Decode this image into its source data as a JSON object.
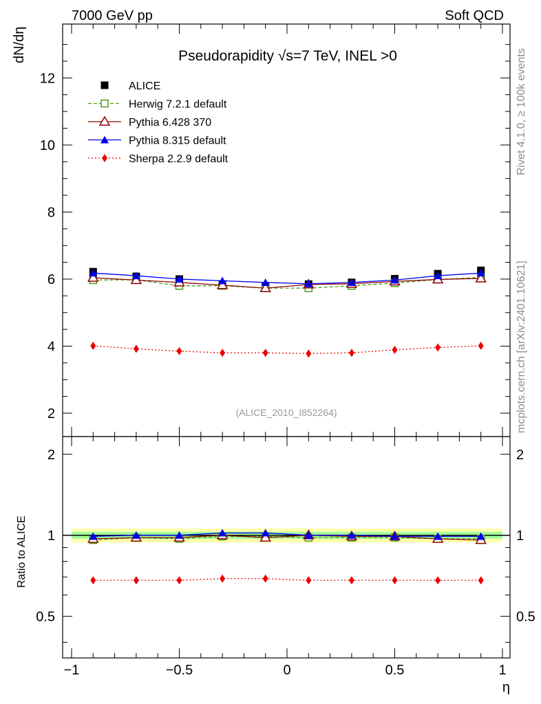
{
  "header": {
    "left": "7000 GeV pp",
    "right": "Soft QCD"
  },
  "side_text": {
    "rivet": "Rivet 4.1.0, ≥ 100k events",
    "mcplots": "mcplots.cern.ch [arXiv:2401.10621]"
  },
  "chart_data": {
    "type": "scatter",
    "title": "Pseudorapidity √s=7 TeV, INEL >0",
    "watermark": "(ALICE_2010_I852264)",
    "xlabel": "η",
    "ylabel": "dN/dη",
    "ratio_ylabel": "Ratio to ALICE",
    "xlim": [
      -1.0,
      1.0
    ],
    "ylim": [
      1.2,
      13.3
    ],
    "ratio_ylim": [
      0.35,
      2.3
    ],
    "x_ticks": [
      "−1",
      "−0.5",
      "0",
      "0.5",
      "1"
    ],
    "x_tick_values": [
      -1,
      -0.5,
      0,
      0.5,
      1
    ],
    "y_ticks": [
      "2",
      "4",
      "6",
      "8",
      "10",
      "12"
    ],
    "y_tick_values": [
      2,
      4,
      6,
      8,
      10,
      12
    ],
    "ratio_ticks": [
      "0.5",
      "1",
      "2"
    ],
    "ratio_tick_values": [
      0.5,
      1,
      2
    ],
    "x": [
      -0.9,
      -0.7,
      -0.5,
      -0.3,
      -0.1,
      0.1,
      0.3,
      0.5,
      0.7,
      0.9
    ],
    "series": [
      {
        "name": "ALICE",
        "marker": "square",
        "line": "none",
        "color": "#000000",
        "values": [
          6.22,
          6.08,
          6.0,
          5.85,
          5.78,
          5.85,
          5.9,
          6.01,
          6.16,
          6.26
        ]
      },
      {
        "name": "Herwig 7.2.1 default",
        "marker": "open-square",
        "line": "dashed",
        "color": "#4d9a1a",
        "values": [
          5.97,
          5.98,
          5.8,
          5.8,
          5.73,
          5.73,
          5.8,
          5.88,
          5.99,
          6.05
        ]
      },
      {
        "name": "Pythia 6.428 370",
        "marker": "open-triangle",
        "line": "solid",
        "color": "#8b0000",
        "values": [
          6.04,
          5.97,
          5.9,
          5.82,
          5.73,
          5.84,
          5.86,
          5.93,
          5.99,
          6.02
        ]
      },
      {
        "name": "Pythia 8.315 default",
        "marker": "triangle",
        "line": "solid",
        "color": "#0000ee",
        "values": [
          6.18,
          6.1,
          6.0,
          5.95,
          5.9,
          5.86,
          5.9,
          5.97,
          6.1,
          6.18
        ]
      },
      {
        "name": "Sherpa 2.2.9 default",
        "marker": "diamond",
        "line": "dotted",
        "color": "#ee0000",
        "values": [
          4.01,
          3.92,
          3.85,
          3.8,
          3.8,
          3.78,
          3.8,
          3.89,
          3.96,
          4.01
        ]
      }
    ],
    "ratio_band": {
      "inner": 0.03,
      "outer": 0.06
    },
    "ratios": {
      "Herwig 7.2.1 default": [
        0.96,
        0.98,
        0.97,
        0.99,
        0.99,
        0.98,
        0.98,
        0.98,
        0.97,
        0.97
      ],
      "Pythia 6.428 370": [
        0.97,
        0.98,
        0.98,
        1.0,
        0.98,
        1.0,
        0.99,
        0.99,
        0.97,
        0.96
      ],
      "Pythia 8.315 default": [
        0.99,
        1.0,
        1.0,
        1.02,
        1.02,
        1.0,
        1.0,
        0.99,
        0.99,
        0.99
      ],
      "Sherpa 2.2.9 default": [
        0.68,
        0.68,
        0.68,
        0.69,
        0.69,
        0.68,
        0.68,
        0.68,
        0.68,
        0.68
      ]
    }
  }
}
